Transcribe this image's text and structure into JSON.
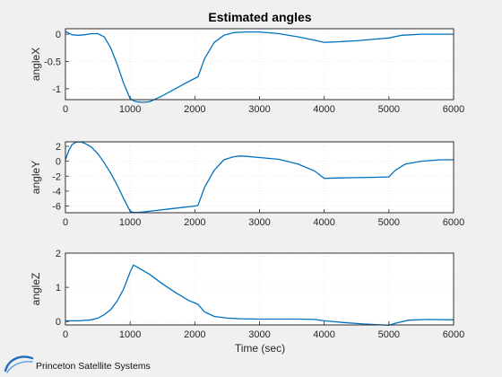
{
  "figure": {
    "title": "Estimated angles",
    "xlabel": "Time (sec)",
    "logo_text": "Princeton Satellite Systems"
  },
  "colors": {
    "series": "#0072bd",
    "background": "#f0f0f0",
    "axes": "#ffffff",
    "logo_blue": "#1f6fc0"
  },
  "chart_data": [
    {
      "type": "line",
      "title": "Estimated angles",
      "ylabel": "angleX",
      "xlim": [
        0,
        6000
      ],
      "ylim": [
        -1.2,
        0.1
      ],
      "xticks": [
        0,
        1000,
        2000,
        3000,
        4000,
        5000,
        6000
      ],
      "yticks": [
        -1,
        -0.5,
        0
      ],
      "ytick_labels": [
        "-1",
        "-0.5",
        "0"
      ],
      "grid": true,
      "x": [
        0,
        100,
        200,
        300,
        400,
        500,
        600,
        700,
        800,
        900,
        1000,
        1050,
        1100,
        1200,
        1300,
        1500,
        1700,
        1900,
        2050,
        2150,
        2300,
        2450,
        2600,
        2800,
        3000,
        3300,
        3600,
        3850,
        4000,
        4200,
        4500,
        4800,
        5000,
        5200,
        5500,
        6000
      ],
      "y": [
        0.05,
        -0.01,
        -0.02,
        -0.01,
        0.01,
        0.01,
        -0.05,
        -0.25,
        -0.55,
        -0.9,
        -1.18,
        -1.22,
        -1.24,
        -1.25,
        -1.24,
        -1.13,
        -1.0,
        -0.87,
        -0.78,
        -0.45,
        -0.15,
        -0.02,
        0.03,
        0.04,
        0.04,
        0.01,
        -0.05,
        -0.11,
        -0.15,
        -0.14,
        -0.12,
        -0.09,
        -0.07,
        -0.02,
        0.0,
        0.0
      ]
    },
    {
      "type": "line",
      "ylabel": "angleY",
      "xlim": [
        0,
        6000
      ],
      "ylim": [
        -6.9,
        2.6
      ],
      "xticks": [
        0,
        1000,
        2000,
        3000,
        4000,
        5000,
        6000
      ],
      "yticks": [
        -6,
        -4,
        -2,
        0,
        2
      ],
      "ytick_labels": [
        "-6",
        "-4",
        "-2",
        "0",
        "2"
      ],
      "grid": true,
      "x": [
        0,
        50,
        100,
        150,
        200,
        250,
        300,
        400,
        500,
        600,
        700,
        800,
        900,
        1000,
        1050,
        1100,
        1200,
        1400,
        1600,
        1800,
        2000,
        2050,
        2150,
        2300,
        2450,
        2600,
        2700,
        2800,
        3000,
        3300,
        3600,
        3850,
        4000,
        4200,
        4500,
        4800,
        5000,
        5100,
        5250,
        5500,
        5800,
        6000
      ],
      "y": [
        0.2,
        1.4,
        2.2,
        2.5,
        2.6,
        2.55,
        2.4,
        1.9,
        1.0,
        -0.2,
        -1.6,
        -3.2,
        -5.0,
        -6.7,
        -6.85,
        -6.85,
        -6.8,
        -6.6,
        -6.4,
        -6.2,
        -6.0,
        -5.9,
        -3.5,
        -1.2,
        0.2,
        0.6,
        0.7,
        0.65,
        0.5,
        0.25,
        -0.4,
        -1.3,
        -2.3,
        -2.25,
        -2.2,
        -2.15,
        -2.1,
        -1.2,
        -0.4,
        0.0,
        0.2,
        0.2
      ]
    },
    {
      "type": "line",
      "ylabel": "angleZ",
      "xlabel": "Time (sec)",
      "xlim": [
        0,
        6000
      ],
      "ylim": [
        -0.1,
        2.0
      ],
      "xticks": [
        0,
        1000,
        2000,
        3000,
        4000,
        5000,
        6000
      ],
      "yticks": [
        0,
        1,
        2
      ],
      "ytick_labels": [
        "0",
        "1",
        "2"
      ],
      "grid": true,
      "x": [
        0,
        200,
        400,
        500,
        600,
        700,
        800,
        900,
        1000,
        1050,
        1100,
        1300,
        1500,
        1700,
        1900,
        2050,
        2150,
        2300,
        2500,
        2700,
        3000,
        3300,
        3600,
        3850,
        4000,
        4300,
        4600,
        4900,
        5000,
        5100,
        5300,
        5600,
        6000
      ],
      "y": [
        0.02,
        0.02,
        0.05,
        0.1,
        0.2,
        0.35,
        0.6,
        0.95,
        1.45,
        1.65,
        1.6,
        1.38,
        1.1,
        0.85,
        0.62,
        0.5,
        0.28,
        0.15,
        0.1,
        0.08,
        0.07,
        0.07,
        0.07,
        0.06,
        0.02,
        -0.03,
        -0.07,
        -0.1,
        -0.11,
        -0.05,
        0.04,
        0.06,
        0.05
      ]
    }
  ]
}
